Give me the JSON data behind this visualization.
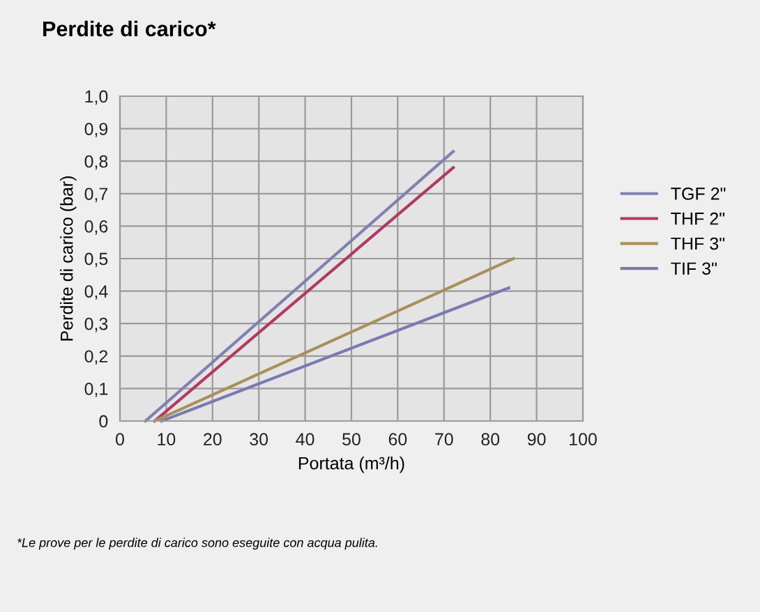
{
  "chart_data": {
    "type": "line",
    "title": "Perdite di carico*",
    "xlabel": "Portata (m³/h)",
    "ylabel": "Perdite di carico (bar)",
    "xlim": [
      0,
      100
    ],
    "xticks": [
      0,
      10,
      20,
      30,
      40,
      50,
      60,
      70,
      80,
      90,
      100
    ],
    "ylim": [
      0,
      1.0
    ],
    "yticks": [
      {
        "value": 0,
        "label": "0"
      },
      {
        "value": 0.1,
        "label": "0,1"
      },
      {
        "value": 0.2,
        "label": "0,2"
      },
      {
        "value": 0.3,
        "label": "0,3"
      },
      {
        "value": 0.4,
        "label": "0,4"
      },
      {
        "value": 0.5,
        "label": "0,5"
      },
      {
        "value": 0.6,
        "label": "0,6"
      },
      {
        "value": 0.7,
        "label": "0,7"
      },
      {
        "value": 0.8,
        "label": "0,8"
      },
      {
        "value": 0.9,
        "label": "0,9"
      },
      {
        "value": 1.0,
        "label": "1,0"
      }
    ],
    "grid": true,
    "legend": "right",
    "marker": "none",
    "line_style": "solid",
    "series": [
      {
        "name": "TGF 2\"",
        "color": "#8080b4",
        "x": [
          5.5,
          72
        ],
        "values": [
          0,
          0.83
        ]
      },
      {
        "name": "THF 2\"",
        "color": "#b03a62",
        "x": [
          7.5,
          72
        ],
        "values": [
          0,
          0.78
        ]
      },
      {
        "name": "THF 3\"",
        "color": "#a8905a",
        "x": [
          7.5,
          85
        ],
        "values": [
          0,
          0.5
        ]
      },
      {
        "name": "TIF 3\"",
        "color": "#7a7ab2",
        "x": [
          9,
          84
        ],
        "values": [
          0,
          0.41
        ]
      }
    ],
    "annotations": [
      "*Le prove per le perdite di carico sono eseguite con acqua pulita."
    ]
  }
}
